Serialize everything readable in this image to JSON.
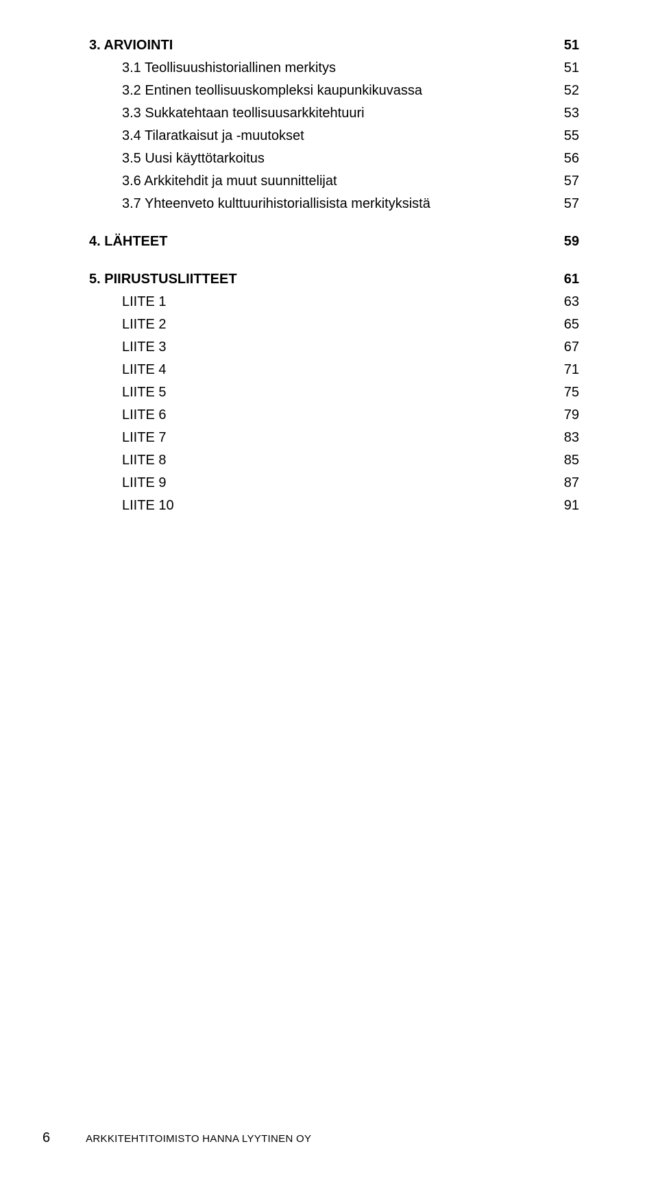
{
  "colors": {
    "background": "#ffffff",
    "text": "#000000"
  },
  "typography": {
    "body_font": "Arial, Helvetica, sans-serif",
    "heading_fontsize_pt": 15,
    "sub_fontsize_pt": 15,
    "footer_fontsize_pt": 11,
    "heading_weight": "bold",
    "sub_weight": "normal"
  },
  "sections": [
    {
      "type": "heading",
      "label": "3. ARVIOINTI",
      "page": "51",
      "first": true
    },
    {
      "type": "sub",
      "label": "3.1 Teollisuushistoriallinen merkitys",
      "page": "51"
    },
    {
      "type": "sub",
      "label": "3.2 Entinen teollisuuskompleksi kaupunkikuvassa",
      "page": "52"
    },
    {
      "type": "sub",
      "label": "3.3 Sukkatehtaan teollisuusarkkitehtuuri",
      "page": "53"
    },
    {
      "type": "sub",
      "label": "3.4 Tilaratkaisut ja -muutokset",
      "page": "55"
    },
    {
      "type": "sub",
      "label": "3.5 Uusi käyttötarkoitus",
      "page": "56"
    },
    {
      "type": "sub",
      "label": "3.6 Arkkitehdit ja muut suunnittelijat",
      "page": "57"
    },
    {
      "type": "sub",
      "label": "3.7 Yhteenveto kulttuurihistoriallisista merkityksistä",
      "page": "57"
    },
    {
      "type": "heading",
      "label": "4. LÄHTEET",
      "page": "59"
    },
    {
      "type": "heading",
      "label": "5. PIIRUSTUSLIITTEET",
      "page": "61"
    },
    {
      "type": "sub",
      "label": "LIITE 1",
      "page": "63"
    },
    {
      "type": "sub",
      "label": "LIITE 2",
      "page": "65"
    },
    {
      "type": "sub",
      "label": "LIITE 3",
      "page": "67"
    },
    {
      "type": "sub",
      "label": "LIITE 4",
      "page": "71"
    },
    {
      "type": "sub",
      "label": "LIITE 5",
      "page": "75"
    },
    {
      "type": "sub",
      "label": "LIITE 6",
      "page": "79"
    },
    {
      "type": "sub",
      "label": "LIITE 7",
      "page": "83"
    },
    {
      "type": "sub",
      "label": "LIITE 8",
      "page": "85"
    },
    {
      "type": "sub",
      "label": "LIITE 9",
      "page": "87"
    },
    {
      "type": "sub",
      "label": "LIITE 10",
      "page": "91"
    }
  ],
  "footer": {
    "page_number": "6",
    "text": "ARKKITEHTITOIMISTO HANNA LYYTINEN OY"
  }
}
